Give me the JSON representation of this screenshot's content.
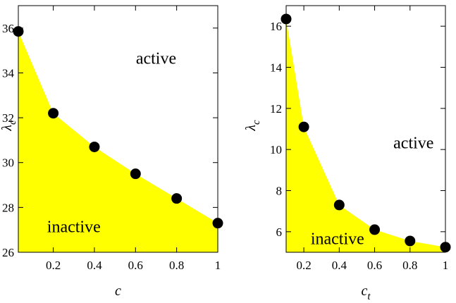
{
  "chart_data": [
    {
      "type": "scatter",
      "xlabel": "c",
      "xlabel_subscript": "",
      "ylabel": "λ",
      "ylabel_subscript": "c",
      "xlim": [
        0.03,
        1.0
      ],
      "ylim": [
        26,
        37
      ],
      "xticks": [
        0.2,
        0.4,
        0.6,
        0.8,
        1.0
      ],
      "xtick_labels": [
        "0.2",
        "0.4",
        "0.6",
        "0.8",
        "1"
      ],
      "yticks": [
        26,
        28,
        30,
        32,
        34,
        36
      ],
      "ytick_labels": [
        "26",
        "28",
        "30",
        "32",
        "34",
        "36"
      ],
      "x": [
        0.03,
        0.2,
        0.4,
        0.6,
        0.8,
        1.0
      ],
      "y": [
        35.85,
        32.2,
        30.7,
        29.5,
        28.4,
        27.3
      ],
      "fill_color": "#ffff00",
      "marker_color": "#000000",
      "regions": [
        {
          "label": "active",
          "x": 0.7,
          "y": 34.4
        },
        {
          "label": "inactive",
          "x": 0.3,
          "y": 26.9
        }
      ]
    },
    {
      "type": "scatter",
      "xlabel": "c",
      "xlabel_subscript": "t",
      "ylabel": "λ",
      "ylabel_subscript": "c",
      "xlim": [
        0.1,
        1.0
      ],
      "ylim": [
        5,
        17
      ],
      "xticks": [
        0.2,
        0.4,
        0.6,
        0.8,
        1.0
      ],
      "xtick_labels": [
        "0.2",
        "0.4",
        "0.6",
        "0.8",
        "1"
      ],
      "yticks": [
        6,
        8,
        10,
        12,
        14,
        16
      ],
      "ytick_labels": [
        "6",
        "8",
        "10",
        "12",
        "14",
        "16"
      ],
      "x": [
        0.1,
        0.2,
        0.4,
        0.6,
        0.8,
        1.0
      ],
      "y": [
        16.35,
        11.1,
        7.3,
        6.1,
        5.55,
        5.25
      ],
      "fill_color": "#ffff00",
      "marker_color": "#000000",
      "regions": [
        {
          "label": "active",
          "x": 0.82,
          "y": 10.05
        },
        {
          "label": "inactive",
          "x": 0.39,
          "y": 5.4
        }
      ]
    }
  ]
}
